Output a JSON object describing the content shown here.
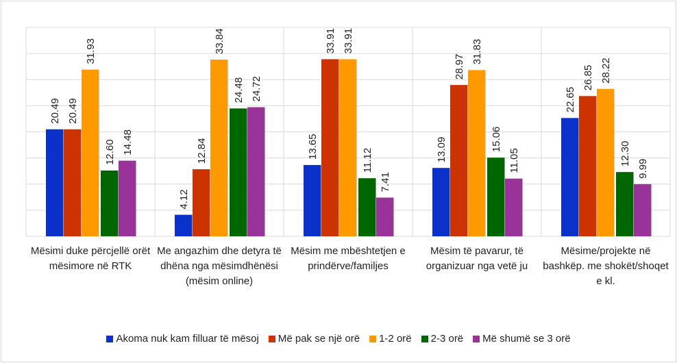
{
  "chart_data": {
    "type": "bar",
    "categories": [
      "Mësimi duke përcjellë orët mësimore në RTK",
      "Me angazhim dhe detyra të dhëna nga mësimdhënësi (mësim online)",
      "Mësim me mbështetjen e prindërve/familjes",
      "Mësim të pavarur, të organizuar nga vetë ju",
      "Mësime/projekte në bashkëp. me shokët/shoqet e kl."
    ],
    "series": [
      {
        "name": "Akoma nuk kam filluar të mësoj",
        "color": "#0a31c9",
        "values": [
          20.49,
          4.12,
          13.65,
          13.09,
          22.65
        ],
        "value_labels": [
          "20.49",
          "4.12",
          "13.65",
          "13.09",
          "22.65"
        ]
      },
      {
        "name": "Më pak se një orë",
        "color": "#cc3300",
        "values": [
          20.49,
          12.84,
          33.91,
          28.97,
          26.85
        ],
        "value_labels": [
          "20.49",
          "12.84",
          "33.91",
          "28.97",
          "26.85"
        ]
      },
      {
        "name": "1-2 orë",
        "color": "#ff9900",
        "values": [
          31.93,
          33.84,
          33.91,
          31.83,
          28.22
        ],
        "value_labels": [
          "31.93",
          "33.84",
          "33.91",
          "31.83",
          "28.22"
        ]
      },
      {
        "name": "2-3 orë",
        "color": "#006600",
        "values": [
          12.6,
          24.48,
          11.12,
          15.06,
          12.3
        ],
        "value_labels": [
          "12.60",
          "24.48",
          "11.12",
          "15.06",
          "12.30"
        ]
      },
      {
        "name": "Më shumë se 3 orë",
        "color": "#993399",
        "values": [
          14.48,
          24.72,
          7.41,
          11.05,
          9.99
        ],
        "value_labels": [
          "14.48",
          "24.72",
          "7.41",
          "11.05",
          "9.99"
        ]
      }
    ],
    "ylim": [
      0,
      40
    ],
    "yticks": [
      0,
      5,
      10,
      15,
      20,
      25,
      30,
      35,
      40
    ],
    "grid": true,
    "legend": "bottom"
  }
}
